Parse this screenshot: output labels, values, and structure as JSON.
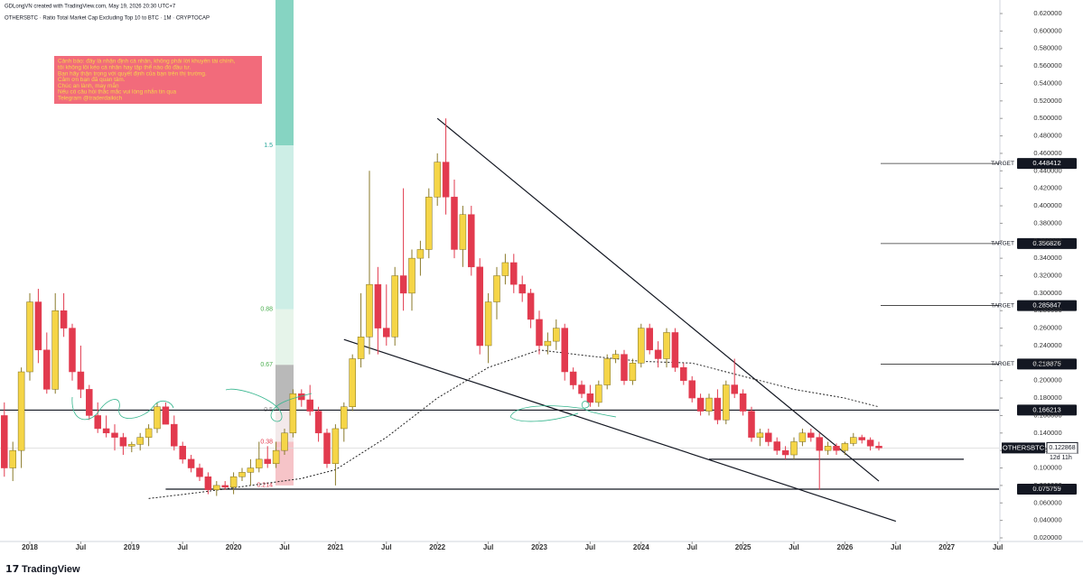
{
  "header": "GDLongVN created with TradingView.com, May 19, 2026 20:30 UTC+7",
  "branding": "TradingView",
  "note": [
    "Cảnh báo: đây là nhận định cá nhân, không phải lời khuyên tài chính,",
    "tôi không lôi kéo cá nhân hay tập thể nào đó đầu tư.",
    "Bạn hãy thận trọng với quyết định của bạn trên thị trường.",
    "Cảm ơn bạn đã quan tâm.",
    "Chúc an lành, may mắn",
    "Nếu có câu hỏi thắc mắc vui lòng nhắn tin qua",
    "Telegram @traderdaikich"
  ],
  "chart_data": {
    "type": "candlestick",
    "title": "OTHERSBTC · Ratio Total Market Cap Excluding Top 10 to BTC · 1M · CRYPTOCAP",
    "up_color": "#f5d547",
    "down_color": "#e23a4e",
    "xlim": [
      "2017-09",
      "2027-09"
    ],
    "ylim": [
      0.02,
      0.62
    ],
    "x": [
      "2017-10",
      "2017-11",
      "2017-12",
      "2018-01",
      "2018-02",
      "2018-03",
      "2018-04",
      "2018-05",
      "2018-06",
      "2018-07",
      "2018-08",
      "2018-09",
      "2018-10",
      "2018-11",
      "2018-12",
      "2019-01",
      "2019-02",
      "2019-03",
      "2019-04",
      "2019-05",
      "2019-06",
      "2019-07",
      "2019-08",
      "2019-09",
      "2019-10",
      "2019-11",
      "2019-12",
      "2020-01",
      "2020-02",
      "2020-03",
      "2020-04",
      "2020-05",
      "2020-06",
      "2020-07",
      "2020-08",
      "2020-09",
      "2020-10",
      "2020-11",
      "2020-12",
      "2021-01",
      "2021-02",
      "2021-03",
      "2021-04",
      "2021-05",
      "2021-06",
      "2021-07",
      "2021-08",
      "2021-09",
      "2021-10",
      "2021-11",
      "2021-12",
      "2022-01",
      "2022-02",
      "2022-03",
      "2022-04",
      "2022-05",
      "2022-06",
      "2022-07",
      "2022-08",
      "2022-09",
      "2022-10",
      "2022-11",
      "2022-12",
      "2023-01",
      "2023-02",
      "2023-03",
      "2023-04",
      "2023-05",
      "2023-06",
      "2023-07",
      "2023-08",
      "2023-09",
      "2023-10",
      "2023-11",
      "2023-12",
      "2024-01",
      "2024-02",
      "2024-03",
      "2024-04",
      "2024-05",
      "2024-06",
      "2024-07",
      "2024-08",
      "2024-09",
      "2024-10",
      "2024-11",
      "2024-12",
      "2025-01",
      "2025-02",
      "2025-03",
      "2025-04",
      "2025-05",
      "2025-06",
      "2025-07",
      "2025-08",
      "2025-09",
      "2025-10",
      "2025-11",
      "2025-12",
      "2026-01",
      "2026-02",
      "2026-03",
      "2026-04",
      "2026-05"
    ],
    "open": [
      0.16,
      0.1,
      0.12,
      0.21,
      0.29,
      0.235,
      0.19,
      0.28,
      0.26,
      0.21,
      0.19,
      0.16,
      0.145,
      0.14,
      0.135,
      0.125,
      0.127,
      0.135,
      0.145,
      0.17,
      0.15,
      0.125,
      0.11,
      0.1,
      0.09,
      0.075,
      0.08,
      0.078,
      0.09,
      0.095,
      0.1,
      0.11,
      0.105,
      0.12,
      0.14,
      0.185,
      0.178,
      0.165,
      0.14,
      0.105,
      0.145,
      0.17,
      0.225,
      0.25,
      0.31,
      0.26,
      0.25,
      0.32,
      0.3,
      0.34,
      0.35,
      0.41,
      0.45,
      0.41,
      0.35,
      0.39,
      0.33,
      0.24,
      0.29,
      0.32,
      0.335,
      0.31,
      0.3,
      0.27,
      0.24,
      0.245,
      0.26,
      0.21,
      0.195,
      0.185,
      0.175,
      0.195,
      0.225,
      0.23,
      0.2,
      0.22,
      0.26,
      0.235,
      0.225,
      0.255,
      0.215,
      0.2,
      0.18,
      0.165,
      0.18,
      0.155,
      0.195,
      0.185,
      0.165,
      0.135,
      0.14,
      0.13,
      0.12,
      0.115,
      0.13,
      0.14,
      0.135,
      0.12,
      0.125,
      0.12,
      0.128,
      0.135,
      0.132,
      0.125
    ],
    "high": [
      0.175,
      0.13,
      0.215,
      0.3,
      0.305,
      0.255,
      0.3,
      0.3,
      0.265,
      0.24,
      0.195,
      0.175,
      0.16,
      0.15,
      0.14,
      0.13,
      0.14,
      0.15,
      0.175,
      0.175,
      0.16,
      0.13,
      0.115,
      0.105,
      0.095,
      0.085,
      0.085,
      0.095,
      0.1,
      0.11,
      0.13,
      0.125,
      0.13,
      0.145,
      0.19,
      0.19,
      0.195,
      0.17,
      0.145,
      0.15,
      0.175,
      0.23,
      0.3,
      0.44,
      0.33,
      0.31,
      0.33,
      0.42,
      0.35,
      0.36,
      0.42,
      0.46,
      0.5,
      0.43,
      0.4,
      0.4,
      0.34,
      0.3,
      0.33,
      0.345,
      0.345,
      0.32,
      0.305,
      0.28,
      0.255,
      0.27,
      0.265,
      0.215,
      0.2,
      0.195,
      0.2,
      0.23,
      0.235,
      0.235,
      0.225,
      0.265,
      0.265,
      0.245,
      0.26,
      0.26,
      0.22,
      0.205,
      0.185,
      0.185,
      0.19,
      0.2,
      0.225,
      0.19,
      0.17,
      0.145,
      0.145,
      0.135,
      0.125,
      0.135,
      0.145,
      0.145,
      0.14,
      0.13,
      0.128,
      0.13,
      0.14,
      0.138,
      0.135,
      0.13
    ],
    "low": [
      0.09,
      0.085,
      0.1,
      0.2,
      0.22,
      0.185,
      0.185,
      0.25,
      0.2,
      0.18,
      0.155,
      0.14,
      0.135,
      0.12,
      0.115,
      0.118,
      0.12,
      0.125,
      0.14,
      0.15,
      0.12,
      0.105,
      0.095,
      0.085,
      0.07,
      0.068,
      0.075,
      0.07,
      0.085,
      0.08,
      0.095,
      0.1,
      0.1,
      0.115,
      0.135,
      0.17,
      0.16,
      0.13,
      0.1,
      0.08,
      0.13,
      0.165,
      0.215,
      0.23,
      0.23,
      0.24,
      0.24,
      0.28,
      0.28,
      0.32,
      0.34,
      0.4,
      0.39,
      0.34,
      0.33,
      0.32,
      0.23,
      0.22,
      0.27,
      0.31,
      0.3,
      0.29,
      0.26,
      0.23,
      0.23,
      0.235,
      0.2,
      0.19,
      0.18,
      0.17,
      0.17,
      0.19,
      0.22,
      0.195,
      0.195,
      0.215,
      0.23,
      0.215,
      0.215,
      0.21,
      0.195,
      0.175,
      0.16,
      0.16,
      0.15,
      0.15,
      0.18,
      0.16,
      0.13,
      0.125,
      0.125,
      0.115,
      0.11,
      0.11,
      0.125,
      0.13,
      0.075,
      0.115,
      0.115,
      0.115,
      0.125,
      0.128,
      0.12,
      0.12
    ],
    "close": [
      0.1,
      0.12,
      0.21,
      0.29,
      0.235,
      0.19,
      0.28,
      0.26,
      0.21,
      0.19,
      0.16,
      0.145,
      0.14,
      0.135,
      0.125,
      0.127,
      0.135,
      0.145,
      0.17,
      0.15,
      0.125,
      0.11,
      0.1,
      0.09,
      0.075,
      0.08,
      0.078,
      0.09,
      0.095,
      0.1,
      0.11,
      0.105,
      0.12,
      0.14,
      0.185,
      0.178,
      0.165,
      0.14,
      0.105,
      0.145,
      0.17,
      0.225,
      0.25,
      0.31,
      0.26,
      0.25,
      0.32,
      0.3,
      0.34,
      0.35,
      0.41,
      0.45,
      0.41,
      0.35,
      0.39,
      0.33,
      0.24,
      0.29,
      0.32,
      0.335,
      0.31,
      0.3,
      0.27,
      0.24,
      0.245,
      0.26,
      0.21,
      0.195,
      0.185,
      0.175,
      0.195,
      0.225,
      0.23,
      0.2,
      0.22,
      0.26,
      0.235,
      0.225,
      0.255,
      0.215,
      0.2,
      0.18,
      0.165,
      0.18,
      0.155,
      0.195,
      0.185,
      0.165,
      0.135,
      0.14,
      0.13,
      0.12,
      0.115,
      0.13,
      0.14,
      0.135,
      0.12,
      0.125,
      0.12,
      0.128,
      0.135,
      0.132,
      0.125,
      0.122868
    ],
    "ma": {
      "color": "#222222",
      "x": [
        "2019-03",
        "2019-09",
        "2020-03",
        "2020-09",
        "2021-01",
        "2021-07",
        "2022-01",
        "2022-07",
        "2023-01",
        "2023-07",
        "2024-01",
        "2024-07",
        "2025-01",
        "2025-07",
        "2026-01",
        "2026-05"
      ],
      "values": [
        0.065,
        0.072,
        0.08,
        0.088,
        0.098,
        0.135,
        0.18,
        0.215,
        0.235,
        0.228,
        0.222,
        0.22,
        0.205,
        0.19,
        0.18,
        0.17
      ]
    },
    "trendlines": [
      {
        "x": [
          "2022-01",
          "2026-05"
        ],
        "values": [
          0.5,
          0.085
        ]
      },
      {
        "x": [
          "2021-02",
          "2026-07"
        ],
        "values": [
          0.247,
          0.039
        ]
      },
      {
        "x": [
          "2024-09",
          "2027-03"
        ],
        "values": [
          0.11,
          0.11
        ]
      }
    ],
    "hlines": [
      {
        "value": 0.166213,
        "from": "2017-09"
      },
      {
        "value": 0.075759,
        "from": "2019-05"
      }
    ],
    "targets": [
      {
        "label": "TARGET",
        "value": 0.448412
      },
      {
        "label": "TARGET",
        "value": 0.356826
      },
      {
        "label": "TARGET",
        "value": 0.285847
      },
      {
        "label": "TARGET",
        "value": 0.218875
      }
    ],
    "last": {
      "symbol": "OTHERSBTC",
      "value": 0.122868,
      "countdown": "12d 11h"
    },
    "fib_levels": [
      {
        "ratio": 1.5,
        "price": 0.469,
        "color": "#26a69a",
        "fill": "#cdeee6"
      },
      {
        "ratio": 0.88,
        "price": 0.2815,
        "color": "#4caf50",
        "fill": "#e6f4ea"
      },
      {
        "ratio": 0.67,
        "price": 0.218,
        "color": "#4caf50",
        "fill": "#b9b9b9"
      },
      {
        "ratio": 0.5,
        "price": 0.1665,
        "color": "#888888",
        "fill": "#f3e9ea"
      },
      {
        "ratio": 0.38,
        "price": 0.13,
        "color": "#e23a4e",
        "fill": "#f6c4c8"
      },
      {
        "ratio": 0.214,
        "price": 0.08,
        "color": "#e23a4e",
        "fill": "#f6c4c8"
      }
    ],
    "fib_top_fill": "#86d4c2",
    "xticks": [
      {
        "value": "2018-01",
        "label": "2018"
      },
      {
        "value": "2018-07",
        "label": "Jul"
      },
      {
        "value": "2019-01",
        "label": "2019"
      },
      {
        "value": "2019-07",
        "label": "Jul"
      },
      {
        "value": "2020-01",
        "label": "2020"
      },
      {
        "value": "2020-07",
        "label": "Jul"
      },
      {
        "value": "2021-01",
        "label": "2021"
      },
      {
        "value": "2021-07",
        "label": "Jul"
      },
      {
        "value": "2022-01",
        "label": "2022"
      },
      {
        "value": "2022-07",
        "label": "Jul"
      },
      {
        "value": "2023-01",
        "label": "2023"
      },
      {
        "value": "2023-07",
        "label": "Jul"
      },
      {
        "value": "2024-01",
        "label": "2024"
      },
      {
        "value": "2024-07",
        "label": "Jul"
      },
      {
        "value": "2025-01",
        "label": "2025"
      },
      {
        "value": "2025-07",
        "label": "Jul"
      },
      {
        "value": "2026-01",
        "label": "2026"
      },
      {
        "value": "2026-07",
        "label": "Jul"
      },
      {
        "value": "2027-01",
        "label": "2027"
      },
      {
        "value": "2027-07",
        "label": "Jul"
      }
    ],
    "yticks": [
      {
        "value": 0.02,
        "label": "0.020000"
      },
      {
        "value": 0.04,
        "label": "0.040000"
      },
      {
        "value": 0.06,
        "label": "0.060000"
      },
      {
        "value": 0.08,
        "label": "0.080000"
      },
      {
        "value": 0.1,
        "label": "0.100000"
      },
      {
        "value": 0.12,
        "label": "0.120000"
      },
      {
        "value": 0.14,
        "label": "0.140000"
      },
      {
        "value": 0.16,
        "label": "0.160000"
      },
      {
        "value": 0.18,
        "label": "0.180000"
      },
      {
        "value": 0.2,
        "label": "0.200000"
      },
      {
        "value": 0.22,
        "label": "0.220000"
      },
      {
        "value": 0.24,
        "label": "0.240000"
      },
      {
        "value": 0.26,
        "label": "0.260000"
      },
      {
        "value": 0.28,
        "label": "0.280000"
      },
      {
        "value": 0.3,
        "label": "0.300000"
      },
      {
        "value": 0.32,
        "label": "0.320000"
      },
      {
        "value": 0.34,
        "label": "0.340000"
      },
      {
        "value": 0.36,
        "label": "0.360000"
      },
      {
        "value": 0.38,
        "label": "0.380000"
      },
      {
        "value": 0.4,
        "label": "0.400000"
      },
      {
        "value": 0.42,
        "label": "0.420000"
      },
      {
        "value": 0.44,
        "label": "0.440000"
      },
      {
        "value": 0.46,
        "label": "0.460000"
      },
      {
        "value": 0.48,
        "label": "0.480000"
      },
      {
        "value": 0.5,
        "label": "0.500000"
      },
      {
        "value": 0.52,
        "label": "0.520000"
      },
      {
        "value": 0.54,
        "label": "0.540000"
      },
      {
        "value": 0.56,
        "label": "0.560000"
      },
      {
        "value": 0.58,
        "label": "0.580000"
      },
      {
        "value": 0.6,
        "label": "0.600000"
      },
      {
        "value": 0.62,
        "label": "0.620000"
      }
    ]
  }
}
